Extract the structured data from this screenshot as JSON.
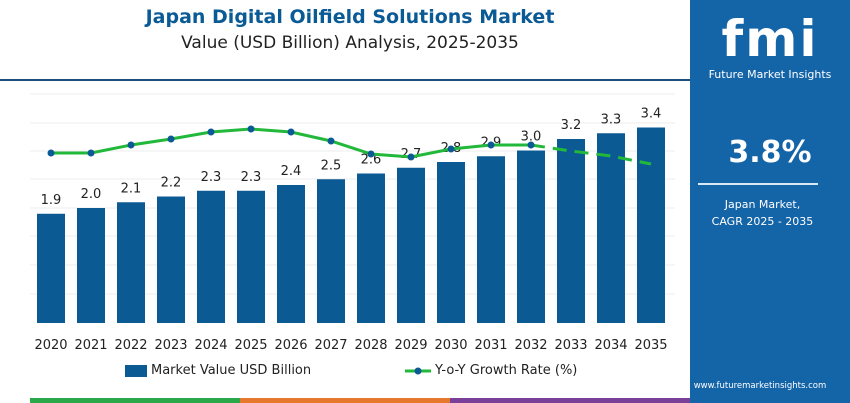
{
  "header": {
    "title": "Japan Digital Oilfield Solutions Market",
    "subtitle": "Value (USD Billion) Analysis, 2025-2035"
  },
  "sidebar": {
    "logo": "fmi",
    "logo_sub": "Future Market Insights",
    "cagr": "3.8%",
    "label_line1": "Japan Market,",
    "label_line2": "CAGR 2025 - 2035",
    "url": "www.futuremarketinsights.com"
  },
  "colors": {
    "bar": "#0b5a94",
    "line": "#22b83a",
    "marker": "#0b5a94",
    "sidebar": "#1464a8"
  },
  "chart_data": {
    "type": "bar",
    "categories": [
      "2020",
      "2021",
      "2022",
      "2023",
      "2024",
      "2025",
      "2026",
      "2027",
      "2028",
      "2029",
      "2030",
      "2031",
      "2032",
      "2033",
      "2034",
      "2035"
    ],
    "series": [
      {
        "name": "Market Value USD Billion",
        "type": "bar",
        "values": [
          1.9,
          2.0,
          2.1,
          2.2,
          2.3,
          2.3,
          2.4,
          2.5,
          2.6,
          2.7,
          2.8,
          2.9,
          3.0,
          3.2,
          3.3,
          3.4
        ]
      },
      {
        "name": "Y-o-Y Growth Rate (%)",
        "type": "line",
        "values": [
          3.64,
          3.64,
          3.8,
          3.92,
          4.06,
          4.12,
          4.06,
          3.88,
          3.62,
          3.56,
          3.72,
          3.8,
          3.8,
          3.68,
          3.58,
          3.42
        ],
        "dashed_from": "2032"
      }
    ],
    "labels": [
      "1.9",
      "2.0",
      "2.1",
      "2.2",
      "2.3",
      "2.3",
      "2.4",
      "2.5",
      "2.6",
      "2.7",
      "2.8",
      "2.9",
      "3.0",
      "3.2",
      "3.3",
      "3.4"
    ],
    "grid": true,
    "legend": "bottom"
  }
}
